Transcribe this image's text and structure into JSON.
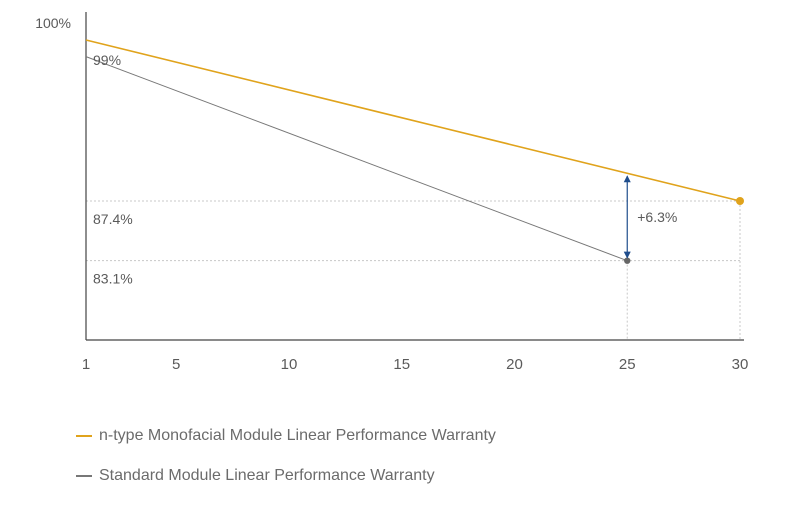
{
  "chart_data": {
    "type": "line",
    "x_ticks": [
      1,
      5,
      10,
      15,
      20,
      25,
      30
    ],
    "xlim": [
      1,
      30
    ],
    "y_top_label": "100%",
    "series": [
      {
        "name": "n-type Monofacial Module Linear Performance Warranty",
        "color": "#e0a31c",
        "points": [
          [
            1,
            99.0
          ],
          [
            30,
            87.4
          ]
        ]
      },
      {
        "name": "Standard Module Linear Performance Warranty",
        "color": "#777777",
        "points": [
          [
            1,
            97.8
          ],
          [
            25,
            83.1
          ]
        ]
      }
    ],
    "annotations": {
      "start_label": "99%",
      "level_labels": [
        {
          "text": "87.4%",
          "value": 87.4
        },
        {
          "text": "83.1%",
          "value": 83.1
        }
      ],
      "gap": {
        "text": "+6.3%",
        "x": 25
      }
    },
    "legend": [
      {
        "label": "n-type Monofacial Module Linear Performance Warranty",
        "color": "#e0a31c"
      },
      {
        "label": "Standard Module Linear Performance Warranty",
        "color": "#777777"
      }
    ]
  }
}
